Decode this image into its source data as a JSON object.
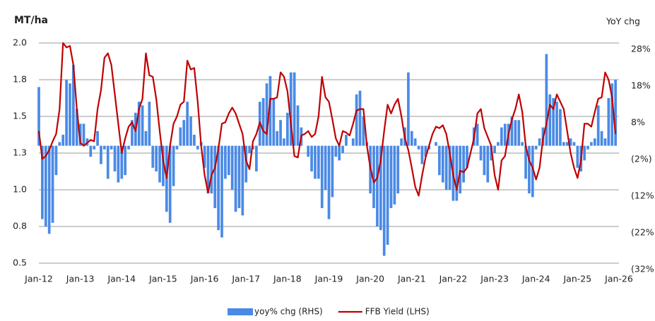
{
  "chart_data": {
    "type": "bar-line",
    "title": "MT/ha",
    "y2_label": "YoY chg",
    "categories": [
      "Jan-12",
      null,
      null,
      null,
      null,
      null,
      null,
      null,
      null,
      null,
      null,
      null,
      "Jan-13",
      null,
      null,
      null,
      null,
      null,
      null,
      null,
      null,
      null,
      null,
      null,
      "Jan-14",
      null,
      null,
      null,
      null,
      null,
      null,
      null,
      null,
      null,
      null,
      null,
      "Jan-15",
      null,
      null,
      null,
      null,
      null,
      null,
      null,
      null,
      null,
      null,
      null,
      "Jan-16",
      null,
      null,
      null,
      null,
      null,
      null,
      null,
      null,
      null,
      null,
      null,
      "Jan-17",
      null,
      null,
      null,
      null,
      null,
      null,
      null,
      null,
      null,
      null,
      null,
      "Jan-18",
      null,
      null,
      null,
      null,
      null,
      null,
      null,
      null,
      null,
      null,
      null,
      "Jan-19",
      null,
      null,
      null,
      null,
      null,
      null,
      null,
      null,
      null,
      null,
      null,
      "Jan-20",
      null,
      null,
      null,
      null,
      null,
      null,
      null,
      null,
      null,
      null,
      null,
      "Jan-21",
      null,
      null,
      null,
      null,
      null,
      null,
      null,
      null,
      null,
      null,
      null,
      "Jan-22",
      null,
      null,
      null,
      null,
      null,
      null,
      null,
      null,
      null,
      null,
      null,
      "Jan-23",
      null,
      null,
      null,
      null,
      null,
      null,
      null,
      null,
      null,
      null,
      null,
      "Jan-24",
      null,
      null,
      null,
      null,
      null,
      null,
      null,
      null,
      null,
      null,
      null,
      "Jan-25",
      null,
      null,
      null,
      null,
      null,
      null,
      null,
      null,
      null,
      null,
      null,
      "Jan-26"
    ],
    "series": [
      {
        "name": "yoy% chg (RHS)",
        "type": "bar",
        "axis": "y2",
        "color": "#4a8ae6",
        "values": [
          16,
          -20,
          -22,
          -24,
          -21,
          -8,
          1,
          3,
          18,
          17,
          22,
          10,
          6,
          6,
          2,
          -3,
          -1,
          4,
          -5,
          -1,
          -9,
          -1,
          -7,
          -10,
          -9,
          -8,
          -1,
          7,
          9,
          12,
          11,
          4,
          12,
          -6,
          -7,
          -10,
          -11,
          -18,
          -21,
          -11,
          -1,
          5,
          7,
          12,
          8,
          3,
          -1,
          1,
          -6,
          -13,
          -13,
          -17,
          -23,
          -25,
          -9,
          -8,
          -12,
          -18,
          -17,
          -19,
          -10,
          -2,
          -1,
          -7,
          12,
          13,
          17,
          19,
          13,
          4,
          7,
          2,
          9,
          20,
          20,
          11,
          5,
          0,
          -3,
          -7,
          -9,
          -9,
          -17,
          -12,
          -20,
          -14,
          -3,
          -4,
          -2,
          3,
          0,
          2,
          14,
          15,
          8,
          1,
          -13,
          -17,
          -22,
          -23,
          -30,
          -27,
          -17,
          -16,
          -13,
          2,
          5,
          20,
          4,
          2,
          -1,
          -5,
          -3,
          -1,
          0,
          1,
          -8,
          -10,
          -12,
          -12,
          -15,
          -15,
          -13,
          -10,
          -6,
          0,
          5,
          6,
          -4,
          -8,
          -10,
          -4,
          -2,
          1,
          5,
          6,
          6,
          8,
          7,
          7,
          1,
          -9,
          -13,
          -14,
          -1,
          2,
          5,
          25,
          14,
          13,
          12,
          10,
          1,
          1,
          2,
          1,
          -6,
          -7,
          -4,
          -1,
          1,
          2,
          11,
          4,
          2,
          13,
          17,
          18,
          null
        ]
      },
      {
        "name": "FFB Yield (LHS)",
        "type": "line",
        "axis": "y",
        "color": "#c00000",
        "values": [
          1.4,
          1.21,
          1.23,
          1.27,
          1.33,
          1.38,
          1.55,
          2.0,
          1.97,
          1.98,
          1.85,
          1.55,
          1.32,
          1.3,
          1.32,
          1.34,
          1.33,
          1.55,
          1.68,
          1.9,
          1.93,
          1.85,
          1.65,
          1.45,
          1.25,
          1.35,
          1.43,
          1.46,
          1.4,
          1.55,
          1.62,
          1.93,
          1.78,
          1.77,
          1.62,
          1.4,
          1.2,
          1.08,
          1.3,
          1.45,
          1.5,
          1.58,
          1.6,
          1.88,
          1.82,
          1.83,
          1.6,
          1.3,
          1.1,
          0.98,
          1.1,
          1.15,
          1.28,
          1.45,
          1.46,
          1.52,
          1.56,
          1.52,
          1.45,
          1.38,
          1.2,
          1.14,
          1.33,
          1.38,
          1.46,
          1.4,
          1.38,
          1.62,
          1.62,
          1.63,
          1.8,
          1.77,
          1.67,
          1.45,
          1.23,
          1.22,
          1.37,
          1.38,
          1.4,
          1.36,
          1.38,
          1.5,
          1.77,
          1.63,
          1.6,
          1.48,
          1.35,
          1.3,
          1.4,
          1.39,
          1.37,
          1.45,
          1.54,
          1.55,
          1.55,
          1.3,
          1.15,
          1.05,
          1.08,
          1.2,
          1.4,
          1.58,
          1.52,
          1.58,
          1.62,
          1.5,
          1.35,
          1.27,
          1.15,
          1.02,
          0.96,
          1.1,
          1.22,
          1.3,
          1.38,
          1.43,
          1.42,
          1.44,
          1.38,
          1.25,
          1.1,
          1.0,
          1.13,
          1.12,
          1.15,
          1.25,
          1.35,
          1.52,
          1.55,
          1.42,
          1.36,
          1.3,
          1.1,
          1.0,
          1.2,
          1.23,
          1.38,
          1.48,
          1.55,
          1.65,
          1.53,
          1.3,
          1.2,
          1.15,
          1.07,
          1.15,
          1.35,
          1.45,
          1.58,
          1.55,
          1.65,
          1.6,
          1.55,
          1.4,
          1.25,
          1.15,
          1.08,
          1.2,
          1.45,
          1.45,
          1.43,
          1.53,
          1.62,
          1.63,
          1.8,
          1.75,
          1.63,
          1.38,
          null
        ]
      }
    ],
    "ylim": [
      0.5,
      2.0
    ],
    "yticks": [
      {
        "value": 0.5,
        "label": "0.5"
      },
      {
        "value": 0.75,
        "label": "0.8"
      },
      {
        "value": 1.0,
        "label": "1.0"
      },
      {
        "value": 1.25,
        "label": "1.3"
      },
      {
        "value": 1.5,
        "label": "1.5"
      },
      {
        "value": 1.75,
        "label": "1.8"
      },
      {
        "value": 2.0,
        "label": "2.0"
      }
    ],
    "y2lim": [
      -32,
      28
    ],
    "y2ticks": [
      {
        "value": -32,
        "label": "(32%)"
      },
      {
        "value": -22,
        "label": "(22%)"
      },
      {
        "value": -12,
        "label": "(12%)"
      },
      {
        "value": -2,
        "label": "(2%)"
      },
      {
        "value": 8,
        "label": "8%"
      },
      {
        "value": 18,
        "label": "18%"
      },
      {
        "value": 28,
        "label": "28%"
      }
    ],
    "y2tick_negative_color": "#c00000",
    "grid": true,
    "legend": "bottom"
  }
}
